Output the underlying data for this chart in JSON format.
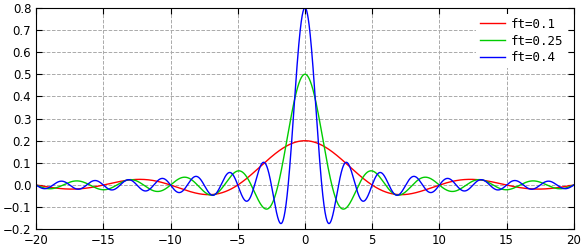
{
  "title": "",
  "xlabel": "",
  "ylabel": "",
  "xlim": [
    -20,
    20
  ],
  "ylim": [
    -0.2,
    0.8
  ],
  "xticks": [
    -20,
    -15,
    -10,
    -5,
    0,
    5,
    10,
    15,
    20
  ],
  "yticks": [
    -0.2,
    -0.1,
    0.0,
    0.1,
    0.2,
    0.3,
    0.4,
    0.5,
    0.6,
    0.7,
    0.8
  ],
  "series": [
    {
      "ft": 0.1,
      "color": "#ff0000",
      "label": "ft=0.1"
    },
    {
      "ft": 0.25,
      "color": "#00cc00",
      "label": "ft=0.25"
    },
    {
      "ft": 0.4,
      "color": "#0000ff",
      "label": "ft=0.4"
    }
  ],
  "background_color": "#ffffff",
  "grid_color": "#aaaaaa",
  "grid_style": "--",
  "legend_fontsize": 9,
  "tick_fontsize": 8.5,
  "n_points": 8000,
  "figsize": [
    5.84,
    2.5
  ],
  "dpi": 100
}
